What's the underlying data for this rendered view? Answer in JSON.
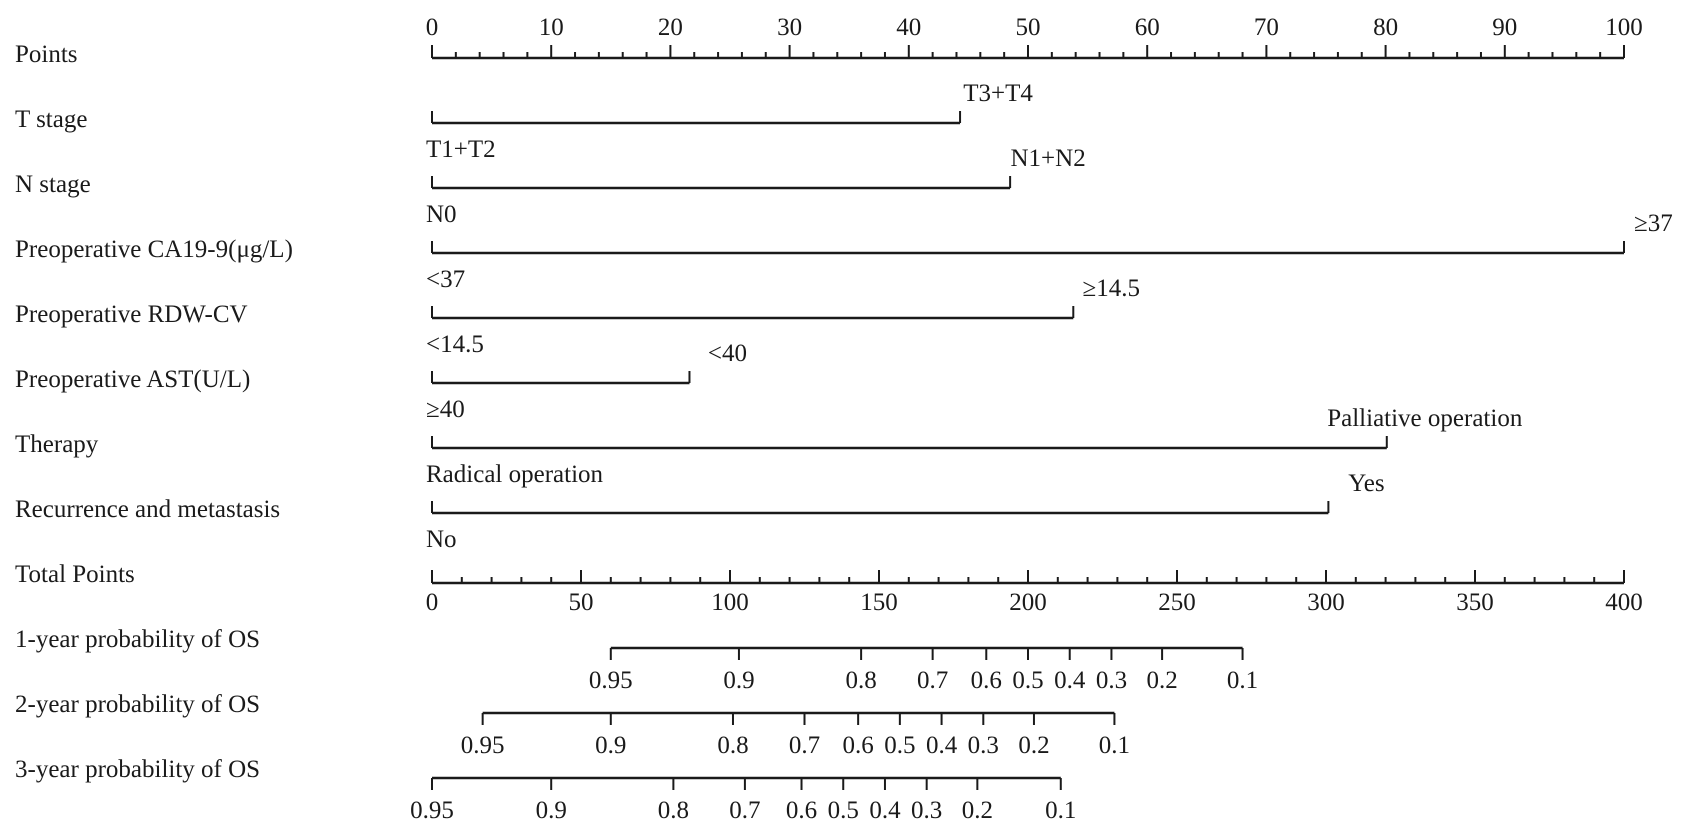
{
  "chart_data": {
    "type": "nomogram",
    "title": "",
    "points_axis": {
      "label": "Points",
      "range": [
        0,
        100
      ],
      "major_ticks": [
        0,
        10,
        20,
        30,
        40,
        50,
        60,
        70,
        80,
        90,
        100
      ],
      "minor_step": 2
    },
    "variables": [
      {
        "label": "T stage",
        "levels": [
          {
            "label": "T1+T2",
            "points": 0
          },
          {
            "label": "T3+T4",
            "points": 44.3
          }
        ]
      },
      {
        "label": "N stage",
        "levels": [
          {
            "label": "N0",
            "points": 0
          },
          {
            "label": "N1+N2",
            "points": 48.5
          }
        ]
      },
      {
        "label": "Preoperative CA19-9(μg/L)",
        "levels": [
          {
            "label": "<37",
            "points": 0
          },
          {
            "label": "≥37",
            "points": 100
          }
        ]
      },
      {
        "label": "Preoperative RDW-CV",
        "levels": [
          {
            "label": "<14.5",
            "points": 0
          },
          {
            "label": "≥14.5",
            "points": 53.8
          }
        ]
      },
      {
        "label": "Preoperative AST(U/L)",
        "levels": [
          {
            "label": "≥40",
            "points": 0
          },
          {
            "label": "<40",
            "points": 21.6
          }
        ]
      },
      {
        "label": "Therapy",
        "levels": [
          {
            "label": "Radical operation",
            "points": 0
          },
          {
            "label": "Palliative operation",
            "points": 80.1
          }
        ]
      },
      {
        "label": "Recurrence and metastasis",
        "levels": [
          {
            "label": "No",
            "points": 0
          },
          {
            "label": "Yes",
            "points": 75.2
          }
        ]
      }
    ],
    "total_points_axis": {
      "label": "Total Points",
      "range": [
        0,
        400
      ],
      "major_ticks": [
        0,
        50,
        100,
        150,
        200,
        250,
        300,
        350,
        400
      ],
      "minor_step": 10
    },
    "probability_axes": [
      {
        "label": "1-year probability of OS",
        "line_range": [
          60,
          272
        ],
        "ticks": [
          {
            "label": "0.95",
            "total": 60
          },
          {
            "label": "0.9",
            "total": 103
          },
          {
            "label": "0.8",
            "total": 144
          },
          {
            "label": "0.7",
            "total": 168
          },
          {
            "label": "0.6",
            "total": 186
          },
          {
            "label": "0.5",
            "total": 200
          },
          {
            "label": "0.4",
            "total": 214
          },
          {
            "label": "0.3",
            "total": 228
          },
          {
            "label": "0.2",
            "total": 245
          },
          {
            "label": "0.1",
            "total": 272
          }
        ]
      },
      {
        "label": "2-year probability of OS",
        "line_range": [
          17,
          229
        ],
        "ticks": [
          {
            "label": "0.95",
            "total": 17
          },
          {
            "label": "0.9",
            "total": 60
          },
          {
            "label": "0.8",
            "total": 101
          },
          {
            "label": "0.7",
            "total": 125
          },
          {
            "label": "0.6",
            "total": 143
          },
          {
            "label": "0.5",
            "total": 157
          },
          {
            "label": "0.4",
            "total": 171
          },
          {
            "label": "0.3",
            "total": 185
          },
          {
            "label": "0.2",
            "total": 202
          },
          {
            "label": "0.1",
            "total": 229
          }
        ]
      },
      {
        "label": "3-year probability of OS",
        "line_range": [
          0,
          211
        ],
        "ticks": [
          {
            "label": "0.95",
            "total": 0
          },
          {
            "label": "0.9",
            "total": 40
          },
          {
            "label": "0.8",
            "total": 81
          },
          {
            "label": "0.7",
            "total": 105
          },
          {
            "label": "0.6",
            "total": 124
          },
          {
            "label": "0.5",
            "total": 138
          },
          {
            "label": "0.4",
            "total": 152
          },
          {
            "label": "0.3",
            "total": 166
          },
          {
            "label": "0.2",
            "total": 183
          },
          {
            "label": "0.1",
            "total": 211
          }
        ]
      }
    ]
  }
}
